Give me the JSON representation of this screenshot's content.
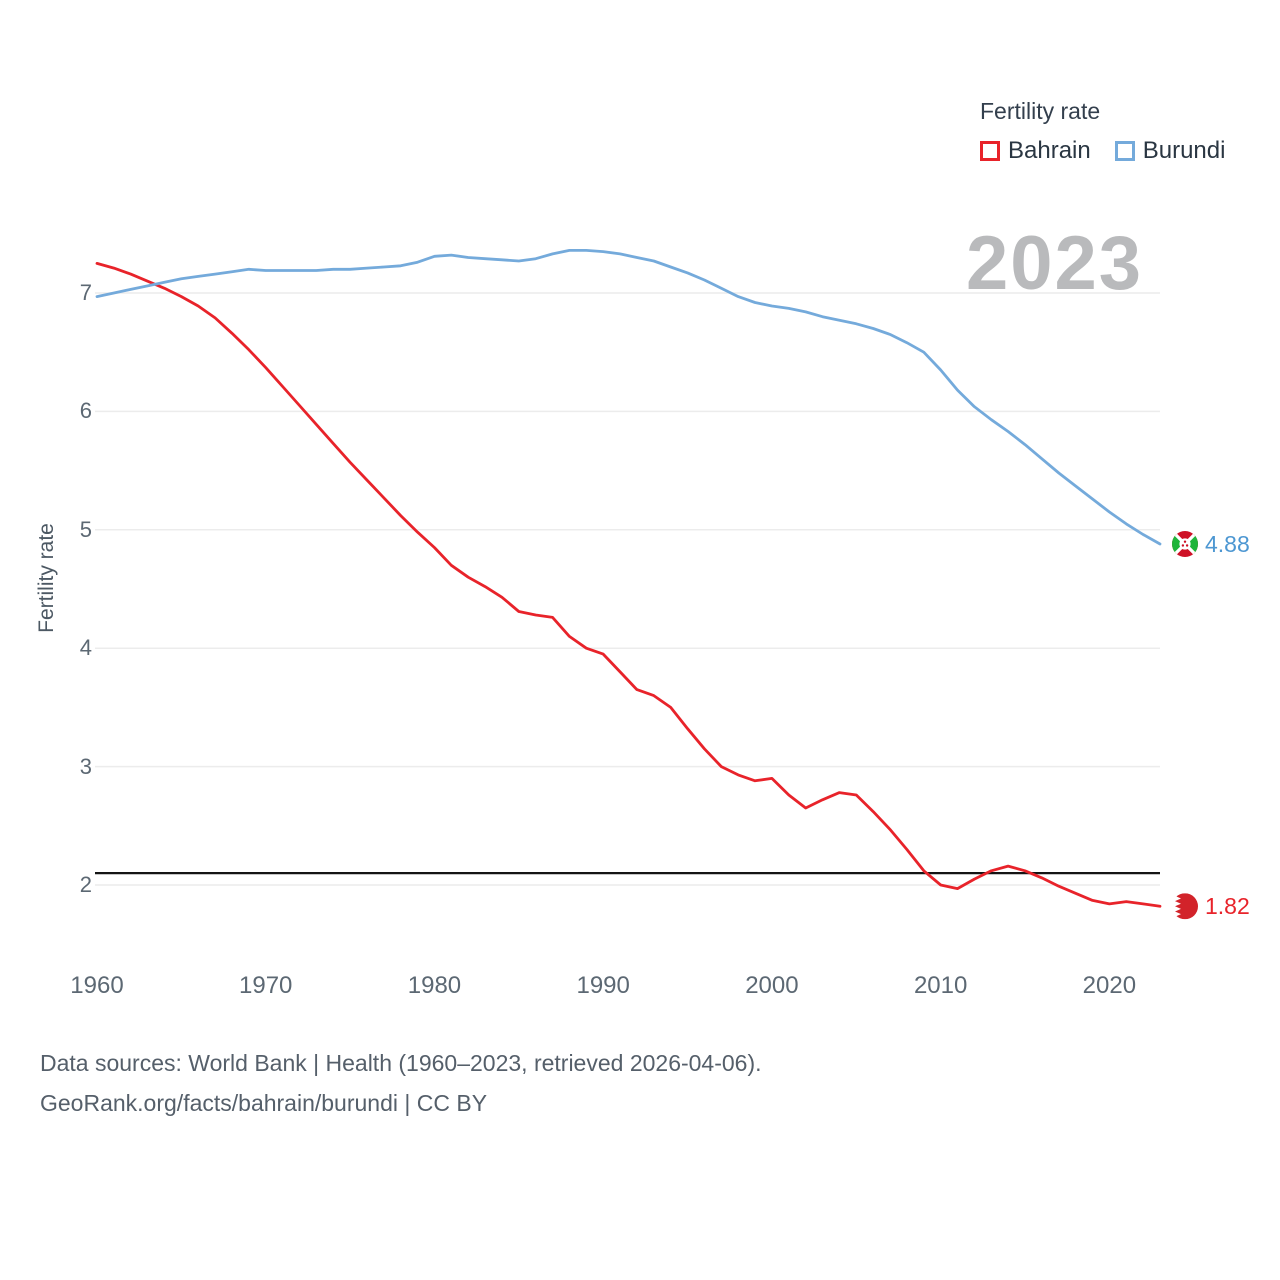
{
  "watermark": "2023",
  "legend": {
    "title": "Fertility rate",
    "items": [
      {
        "label": "Bahrain",
        "color": "#e8232a"
      },
      {
        "label": "Burundi",
        "color": "#74aadb"
      }
    ]
  },
  "axes": {
    "y_label": "Fertility rate",
    "y_ticks": [
      "2",
      "3",
      "4",
      "5",
      "6",
      "7"
    ],
    "x_ticks": [
      "1960",
      "1970",
      "1980",
      "1990",
      "2000",
      "2010",
      "2020"
    ]
  },
  "end_labels": [
    {
      "series": "Burundi",
      "value": "4.88",
      "color": "#4d97d2",
      "flag": "burundi"
    },
    {
      "series": "Bahrain",
      "value": "1.82",
      "color": "#e8232a",
      "flag": "bahrain"
    }
  ],
  "footer": {
    "line1": "Data sources: World Bank | Health (1960–2023, retrieved 2026-04-06).",
    "line2": "GeoRank.org/facts/bahrain/burundi | CC BY"
  },
  "chart_data": {
    "type": "line",
    "title": "Fertility rate",
    "xlabel": "",
    "ylabel": "Fertility rate",
    "xlim": [
      1960,
      2023
    ],
    "ylim": [
      1.6,
      7.6
    ],
    "grid": "horizontal-only",
    "legend_position": "top-right",
    "x": [
      1960,
      1961,
      1962,
      1963,
      1964,
      1965,
      1966,
      1967,
      1968,
      1969,
      1970,
      1971,
      1972,
      1973,
      1974,
      1975,
      1976,
      1977,
      1978,
      1979,
      1980,
      1981,
      1982,
      1983,
      1984,
      1985,
      1986,
      1987,
      1988,
      1989,
      1990,
      1991,
      1992,
      1993,
      1994,
      1995,
      1996,
      1997,
      1998,
      1999,
      2000,
      2001,
      2002,
      2003,
      2004,
      2005,
      2006,
      2007,
      2008,
      2009,
      2010,
      2011,
      2012,
      2013,
      2014,
      2015,
      2016,
      2017,
      2018,
      2019,
      2020,
      2021,
      2022,
      2023
    ],
    "series": [
      {
        "name": "Bahrain",
        "color": "#e8232a",
        "values": [
          7.25,
          7.21,
          7.16,
          7.1,
          7.04,
          6.97,
          6.89,
          6.79,
          6.66,
          6.52,
          6.37,
          6.21,
          6.05,
          5.89,
          5.73,
          5.57,
          5.42,
          5.27,
          5.12,
          4.98,
          4.85,
          4.7,
          4.6,
          4.52,
          4.43,
          4.31,
          4.28,
          4.26,
          4.1,
          4.0,
          3.95,
          3.8,
          3.65,
          3.6,
          3.5,
          3.32,
          3.15,
          3.0,
          2.93,
          2.88,
          2.9,
          2.76,
          2.65,
          2.72,
          2.78,
          2.76,
          2.62,
          2.47,
          2.3,
          2.12,
          2.0,
          1.97,
          2.05,
          2.12,
          2.16,
          2.12,
          2.06,
          1.99,
          1.93,
          1.87,
          1.84,
          1.86,
          1.84,
          1.82
        ]
      },
      {
        "name": "Burundi",
        "color": "#74aadb",
        "values": [
          6.97,
          7.0,
          7.03,
          7.06,
          7.09,
          7.12,
          7.14,
          7.16,
          7.18,
          7.2,
          7.19,
          7.19,
          7.19,
          7.19,
          7.2,
          7.2,
          7.21,
          7.22,
          7.23,
          7.26,
          7.31,
          7.32,
          7.3,
          7.29,
          7.28,
          7.27,
          7.29,
          7.33,
          7.36,
          7.36,
          7.35,
          7.33,
          7.3,
          7.27,
          7.22,
          7.17,
          7.11,
          7.04,
          6.97,
          6.92,
          6.89,
          6.87,
          6.84,
          6.8,
          6.77,
          6.74,
          6.7,
          6.65,
          6.58,
          6.5,
          6.35,
          6.18,
          6.04,
          5.93,
          5.83,
          5.72,
          5.6,
          5.48,
          5.37,
          5.26,
          5.15,
          5.05,
          4.96,
          4.88
        ]
      }
    ],
    "annotations": [
      {
        "type": "hline",
        "value": 2.1,
        "color": "#141414"
      }
    ]
  }
}
